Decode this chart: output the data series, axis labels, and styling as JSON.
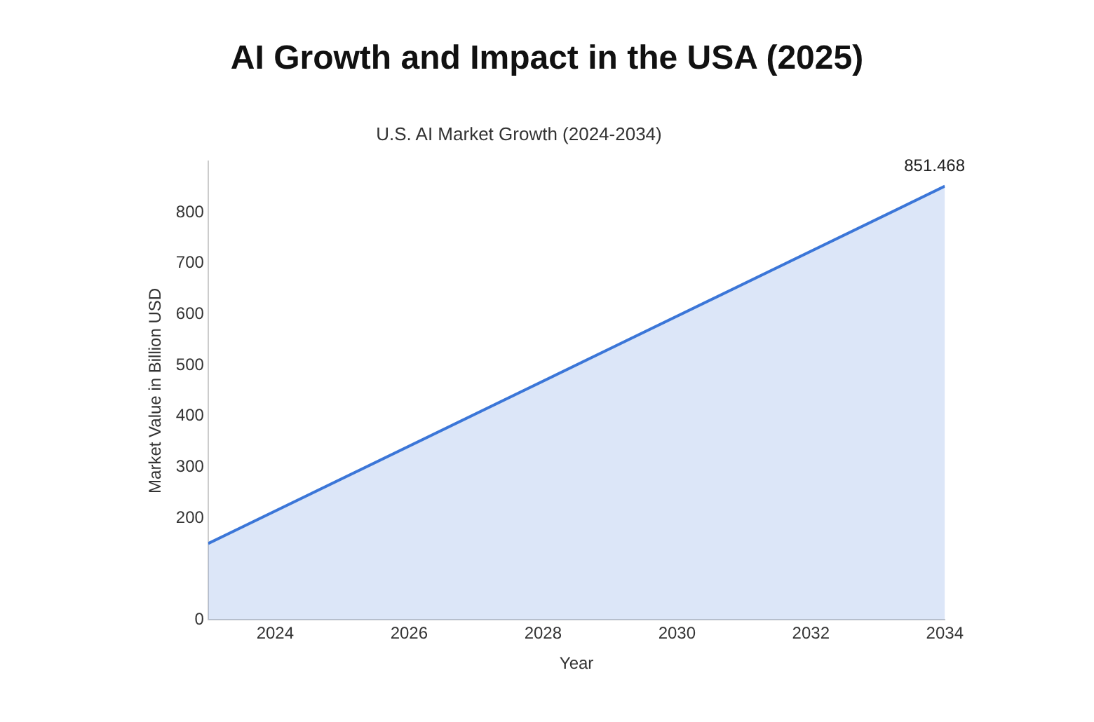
{
  "chart_data": {
    "type": "area",
    "title": "AI Growth and Impact in the USA (2025)",
    "subtitle": "U.S. AI Market Growth (2024-2034)",
    "xlabel": "Year",
    "ylabel": "Market Value in Billion USD",
    "x": [
      2023,
      2034
    ],
    "series": [
      {
        "color": "#3b76d8",
        "values": [
          150,
          851.468
        ],
        "value_labels": [
          null,
          "851.468"
        ]
      }
    ],
    "xlim": [
      2023,
      2034
    ],
    "xticks": [
      2024,
      2026,
      2028,
      2030,
      2032,
      2034
    ],
    "ylim": [
      0,
      900
    ],
    "yticks": [
      0,
      200,
      300,
      400,
      500,
      600,
      700,
      800
    ],
    "grid": false,
    "legend": false,
    "marker": "none"
  }
}
